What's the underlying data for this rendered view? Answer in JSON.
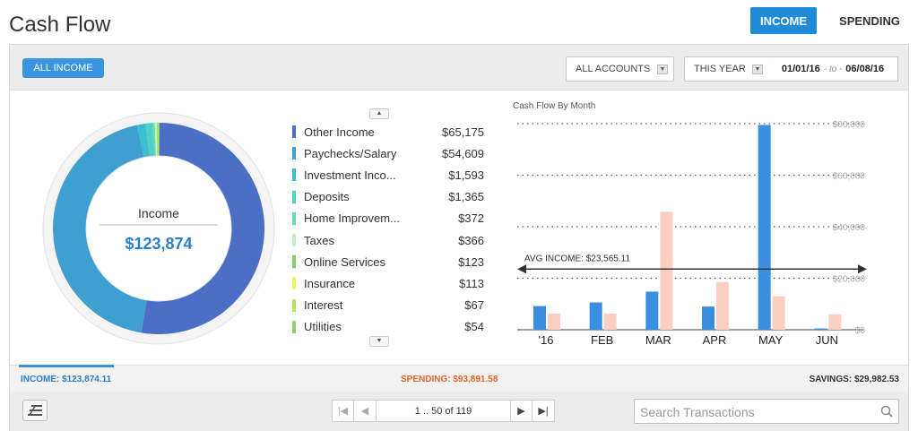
{
  "title": "Cash Flow",
  "tabs": {
    "income": "INCOME",
    "spending": "SPENDING"
  },
  "toolbar": {
    "filter_button": "ALL INCOME",
    "accounts": "ALL ACCOUNTS",
    "period": "THIS YEAR",
    "date_from": "01/01/16",
    "date_to_sep": "- to -",
    "date_to": "06/08/16"
  },
  "donut": {
    "label": "Income",
    "total": "$123,874",
    "colors": {
      "primary": "#4a76c8",
      "secondary": "#3f9fcf"
    }
  },
  "legend": [
    {
      "label": "Other Income",
      "value": "$65,175",
      "amount": 65175,
      "color": "#4a6fc4"
    },
    {
      "label": "Paychecks/Salary",
      "value": "$54,609",
      "amount": 54609,
      "color": "#3f9fcf"
    },
    {
      "label": "Investment Inco...",
      "value": "$1,593",
      "amount": 1593,
      "color": "#3bbfcf"
    },
    {
      "label": "Deposits",
      "value": "$1,365",
      "amount": 1365,
      "color": "#4fd1c5"
    },
    {
      "label": "Home Improvem...",
      "value": "$372",
      "amount": 372,
      "color": "#6ddcb0"
    },
    {
      "label": "Taxes",
      "value": "$366",
      "amount": 366,
      "color": "#c7f2c9"
    },
    {
      "label": "Online Services",
      "value": "$123",
      "amount": 123,
      "color": "#7ed36b"
    },
    {
      "label": "Insurance",
      "value": "$113",
      "amount": 113,
      "color": "#e7f56a"
    },
    {
      "label": "Interest",
      "value": "$67",
      "amount": 67,
      "color": "#b5e35a"
    },
    {
      "label": "Utilities",
      "value": "$54",
      "amount": 54,
      "color": "#8ed66b"
    }
  ],
  "chart_data": {
    "type": "bar",
    "title": "Cash Flow By Month",
    "categories": [
      "'16",
      "FEB",
      "MAR",
      "APR",
      "MAY",
      "JUN"
    ],
    "series": [
      {
        "name": "Income",
        "color": "#3a8fe0",
        "values": [
          9200,
          10600,
          14800,
          9000,
          79500,
          500
        ]
      },
      {
        "name": "Spending",
        "color": "#fbd0c0",
        "values": [
          6300,
          6300,
          45800,
          18500,
          13000,
          6000
        ]
      }
    ],
    "y_ticks": [
      "$0",
      "$20,000",
      "$40,000",
      "$60,000",
      "$80,000"
    ],
    "ylim": [
      0,
      80000
    ],
    "average": {
      "label": "AVG INCOME: $23,565.11",
      "value": 23565.11
    }
  },
  "summary": {
    "income": "INCOME: $123,874.11",
    "spending": "SPENDING: $93,891.58",
    "savings": "SAVINGS: $29,982.53"
  },
  "pagination": {
    "label": "1 .. 50 of 119"
  },
  "search": {
    "placeholder": "Search Transactions"
  }
}
